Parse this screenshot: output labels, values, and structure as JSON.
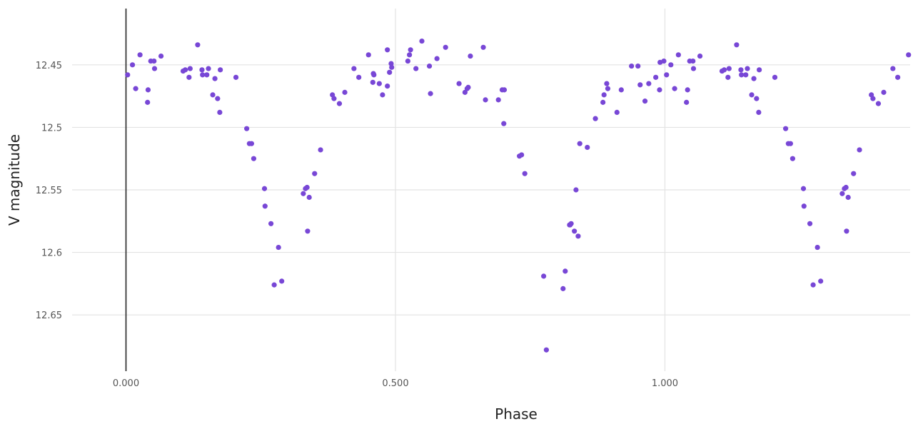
{
  "chart_data": {
    "type": "scatter",
    "xlabel": "Phase",
    "ylabel": "V magnitude",
    "xlim": [
      -0.1,
      1.455
    ],
    "ylim": [
      12.695,
      12.405
    ],
    "y_reversed": true,
    "x_ticks": [
      0,
      0.5,
      1.0
    ],
    "x_tick_labels": [
      "0.000",
      "0.500",
      "1.000"
    ],
    "y_ticks": [
      12.45,
      12.5,
      12.55,
      12.6,
      12.65
    ],
    "y_tick_labels": [
      "12.45",
      "12.5",
      "12.55",
      "12.6",
      "12.65"
    ],
    "grid": true,
    "marker_color": "#7847d6",
    "series": [
      {
        "x": [
          0.003,
          0.012,
          0.018,
          0.026,
          0.04,
          0.041,
          0.046,
          0.052,
          0.053,
          0.065,
          0.106,
          0.11,
          0.117,
          0.119,
          0.133,
          0.141,
          0.142,
          0.15,
          0.153,
          0.161,
          0.165,
          0.17,
          0.174,
          0.175,
          0.204,
          0.224,
          0.229,
          0.233,
          0.237,
          0.257,
          0.258,
          0.269,
          0.275,
          0.283,
          0.289,
          0.329,
          0.333,
          0.336,
          0.337,
          0.34,
          0.35,
          0.361,
          0.383,
          0.386,
          0.396,
          0.406,
          0.423,
          0.432,
          0.45,
          0.458,
          0.459,
          0.46,
          0.47,
          0.476,
          0.485,
          0.485,
          0.489,
          0.492,
          0.493,
          0.523,
          0.526,
          0.528,
          0.538,
          0.549,
          0.563,
          0.565,
          0.577,
          0.593,
          0.618,
          0.629,
          0.633,
          0.635,
          0.639,
          0.663,
          0.667,
          0.691,
          0.698,
          0.702,
          0.701,
          0.73,
          0.734,
          0.74,
          0.775,
          0.811,
          0.815,
          0.823,
          0.824,
          0.826,
          0.832,
          0.835,
          0.839,
          0.842,
          0.856,
          0.871,
          0.885,
          0.887,
          0.892,
          0.894,
          0.911,
          0.919,
          0.938,
          0.95,
          0.954,
          0.963,
          0.97,
          0.983,
          0.99,
          0.991,
          0.998,
          1.003,
          1.011,
          1.018,
          1.025,
          1.04,
          1.042,
          1.046,
          1.052,
          1.053,
          1.065,
          1.106,
          1.11,
          1.117,
          1.119,
          1.133,
          1.141,
          1.142,
          1.15,
          1.153,
          1.161,
          1.165,
          1.17,
          1.174,
          1.175,
          1.204,
          1.224,
          1.229,
          1.233,
          1.237,
          1.257,
          1.258,
          1.269,
          1.275,
          1.283,
          1.289,
          1.329,
          1.333,
          1.336,
          1.337,
          1.34,
          1.35,
          1.361,
          1.383,
          1.386,
          1.396,
          1.406,
          1.423,
          1.432,
          1.452
        ],
        "y": [
          12.458,
          12.45,
          12.469,
          12.442,
          12.48,
          12.47,
          12.447,
          12.447,
          12.453,
          12.443,
          12.455,
          12.454,
          12.46,
          12.453,
          12.434,
          12.454,
          12.458,
          12.458,
          12.453,
          12.474,
          12.461,
          12.477,
          12.488,
          12.454,
          12.46,
          12.501,
          12.513,
          12.513,
          12.525,
          12.549,
          12.563,
          12.577,
          12.626,
          12.596,
          12.623,
          12.553,
          12.549,
          12.548,
          12.583,
          12.556,
          12.537,
          12.518,
          12.474,
          12.477,
          12.481,
          12.472,
          12.453,
          12.46,
          12.442,
          12.464,
          12.457,
          12.458,
          12.465,
          12.474,
          12.467,
          12.438,
          12.456,
          12.449,
          12.452,
          12.447,
          12.442,
          12.438,
          12.453,
          12.431,
          12.451,
          12.473,
          12.445,
          12.436,
          12.465,
          12.472,
          12.469,
          12.468,
          12.443,
          12.436,
          12.478,
          12.478,
          12.47,
          12.47,
          12.497,
          12.523,
          12.522,
          12.537,
          12.619,
          12.629,
          12.615,
          12.578,
          12.578,
          12.577,
          12.583,
          12.55,
          12.587,
          12.513,
          12.516,
          12.493,
          12.48,
          12.474,
          12.465,
          12.469,
          12.488,
          12.47,
          12.451,
          12.451,
          12.466,
          12.479,
          12.465,
          12.46,
          12.47,
          12.448,
          12.447,
          12.458,
          12.45,
          12.469,
          12.442,
          12.48,
          12.47,
          12.447,
          12.447,
          12.453,
          12.443,
          12.455,
          12.454,
          12.46,
          12.453,
          12.434,
          12.454,
          12.458,
          12.458,
          12.453,
          12.474,
          12.461,
          12.477,
          12.488,
          12.454,
          12.46,
          12.501,
          12.513,
          12.513,
          12.525,
          12.549,
          12.563,
          12.577,
          12.626,
          12.596,
          12.623,
          12.553,
          12.549,
          12.548,
          12.583,
          12.556,
          12.537,
          12.518,
          12.474,
          12.477,
          12.481,
          12.472,
          12.453,
          12.46,
          12.442
        ]
      }
    ],
    "extra_points": [
      {
        "x": 0.78,
        "y": 12.678
      }
    ]
  }
}
